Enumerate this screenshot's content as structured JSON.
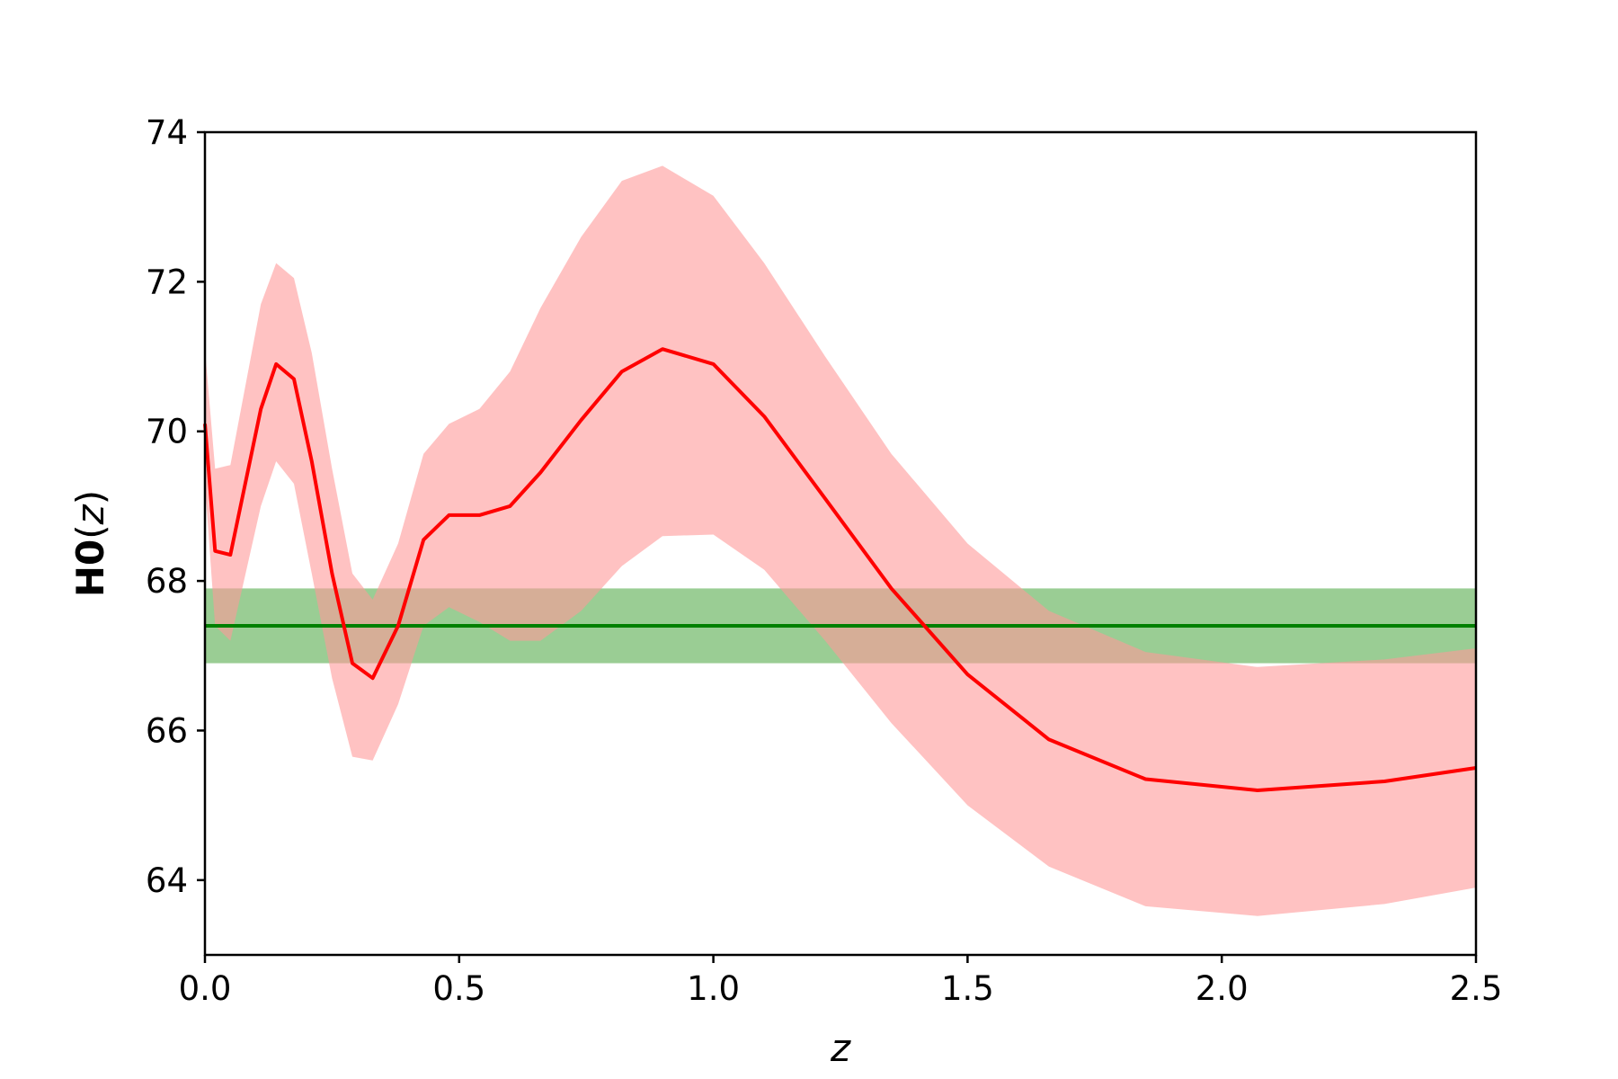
{
  "chart_data": {
    "type": "line",
    "xlabel": "z",
    "ylabel": {
      "main": "H0",
      "open": "(",
      "var": "z",
      "close": ")"
    },
    "xlim": [
      0,
      2.5
    ],
    "ylim": [
      63,
      74
    ],
    "xticks": [
      {
        "value": 0.0,
        "label": "0.0"
      },
      {
        "value": 0.5,
        "label": "0.5"
      },
      {
        "value": 1.0,
        "label": "1.0"
      },
      {
        "value": 1.5,
        "label": "1.5"
      },
      {
        "value": 2.0,
        "label": "2.0"
      },
      {
        "value": 2.5,
        "label": "2.5"
      }
    ],
    "yticks": [
      {
        "value": 64,
        "label": "64"
      },
      {
        "value": 66,
        "label": "66"
      },
      {
        "value": 68,
        "label": "68"
      },
      {
        "value": 70,
        "label": "70"
      },
      {
        "value": 72,
        "label": "72"
      },
      {
        "value": 74,
        "label": "74"
      }
    ],
    "grid": false,
    "series": [
      {
        "color": "#ff0000",
        "band_color": "#ff9999",
        "x": [
          0.0,
          0.02,
          0.05,
          0.11,
          0.14,
          0.175,
          0.21,
          0.25,
          0.29,
          0.33,
          0.38,
          0.43,
          0.48,
          0.54,
          0.6,
          0.66,
          0.74,
          0.82,
          0.9,
          1.0,
          1.1,
          1.22,
          1.35,
          1.5,
          1.66,
          1.85,
          2.07,
          2.32,
          2.5
        ],
        "y": [
          70.1,
          68.4,
          68.35,
          70.3,
          70.9,
          70.7,
          69.6,
          68.1,
          66.9,
          66.7,
          67.4,
          68.55,
          68.88,
          68.88,
          69.0,
          69.45,
          70.15,
          70.8,
          71.1,
          70.9,
          70.2,
          69.1,
          67.9,
          66.75,
          65.88,
          65.35,
          65.2,
          65.32,
          65.5
        ],
        "upper": [
          71.1,
          69.5,
          69.55,
          71.7,
          72.25,
          72.05,
          71.05,
          69.5,
          68.1,
          67.75,
          68.5,
          69.7,
          70.1,
          70.3,
          70.8,
          71.65,
          72.6,
          73.35,
          73.55,
          73.15,
          72.25,
          71.0,
          69.7,
          68.5,
          67.6,
          67.05,
          66.85,
          66.95,
          67.1
        ],
        "lower": [
          69.3,
          67.4,
          67.2,
          69.0,
          69.6,
          69.3,
          68.1,
          66.7,
          65.65,
          65.6,
          66.35,
          67.4,
          67.65,
          67.45,
          67.2,
          67.2,
          67.6,
          68.2,
          68.6,
          68.62,
          68.15,
          67.2,
          66.1,
          65.0,
          64.18,
          63.65,
          63.52,
          63.68,
          63.9
        ]
      },
      {
        "color": "#008000",
        "band_color": "#9acd94",
        "value": 67.4,
        "band": [
          66.9,
          67.9
        ]
      }
    ]
  }
}
